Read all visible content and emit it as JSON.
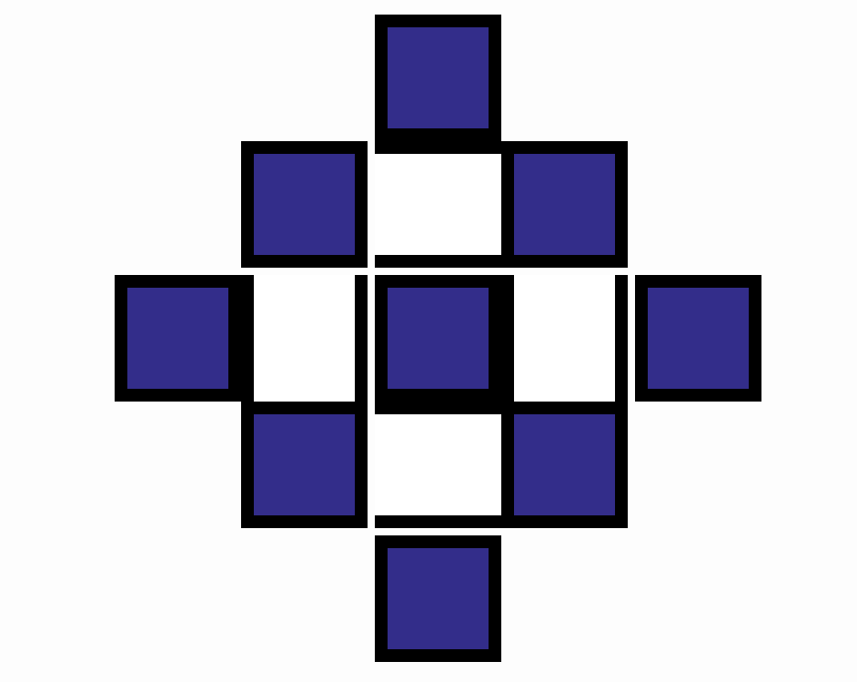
{
  "diagram": {
    "colors": {
      "fill": "#332d8a",
      "outline": "#000000",
      "gap": "#ffffff",
      "background": "#fdfdfd"
    },
    "grid": {
      "rows": 5,
      "columns": 5,
      "pattern": [
        [
          0,
          0,
          1,
          0,
          0
        ],
        [
          0,
          1,
          2,
          1,
          0
        ],
        [
          1,
          2,
          1,
          2,
          1
        ],
        [
          0,
          1,
          2,
          1,
          0
        ],
        [
          0,
          0,
          1,
          0,
          0
        ]
      ],
      "legend_codes": {
        "0": "absent",
        "1": "filled-square",
        "2": "white-gap"
      }
    },
    "filled_square_count": 9
  }
}
